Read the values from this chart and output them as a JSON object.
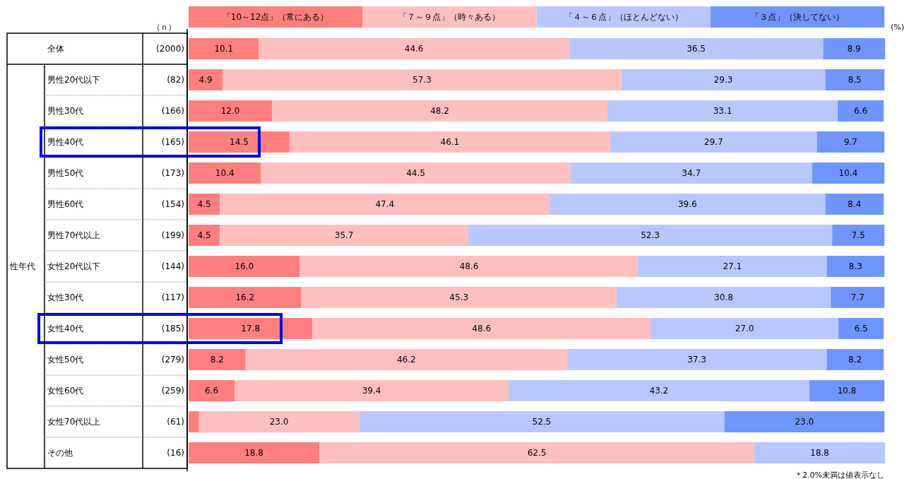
{
  "chart_data": {
    "type": "bar",
    "orientation": "horizontal",
    "stacked": true,
    "legend": "top",
    "xlim": [
      0,
      100
    ],
    "categories": [
      "全体",
      "男性20代以下",
      "男性30代",
      "男性40代",
      "男性50代",
      "男性60代",
      "男性70代以上",
      "女性20代以下",
      "女性30代",
      "女性40代",
      "女性50代",
      "女性60代",
      "女性70代以上",
      "その他"
    ],
    "series": [
      {
        "name": "「10～12点」（常にある）",
        "color": "#ff7f7f",
        "values": [
          10.1,
          4.9,
          12.0,
          14.5,
          10.4,
          4.5,
          4.5,
          16.0,
          16.2,
          17.8,
          8.2,
          6.6,
          1.5,
          18.8
        ],
        "value_labels": [
          "10.1",
          "4.9",
          "12.0",
          "14.5",
          "10.4",
          "4.5",
          "4.5",
          "16.0",
          "16.2",
          "17.8",
          "8.2",
          "6.6",
          null,
          "18.8"
        ]
      },
      {
        "name": "「７～９点」（時々ある）",
        "color": "#ffbfbf",
        "values": [
          44.6,
          57.3,
          48.2,
          46.1,
          44.5,
          47.4,
          35.7,
          48.6,
          45.3,
          48.6,
          46.2,
          39.4,
          23.0,
          62.5
        ],
        "value_labels": [
          "44.6",
          "57.3",
          "48.2",
          "46.1",
          "44.5",
          "47.4",
          "35.7",
          "48.6",
          "45.3",
          "48.6",
          "46.2",
          "39.4",
          "23.0",
          "62.5"
        ]
      },
      {
        "name": "「４～６点」（ほとんどない）",
        "color": "#b8c8ff",
        "values": [
          36.5,
          29.3,
          33.1,
          29.7,
          34.7,
          39.6,
          52.3,
          27.1,
          30.8,
          27.0,
          37.3,
          43.2,
          52.5,
          18.8
        ],
        "value_labels": [
          "36.5",
          "29.3",
          "33.1",
          "29.7",
          "34.7",
          "39.6",
          "52.3",
          "27.1",
          "30.8",
          "27.0",
          "37.3",
          "43.2",
          "52.5",
          "18.8"
        ]
      },
      {
        "name": "「３点」（決してない）",
        "color": "#6f96ff",
        "values": [
          8.9,
          8.5,
          6.6,
          9.7,
          10.4,
          8.4,
          7.5,
          8.3,
          7.7,
          6.5,
          8.2,
          10.8,
          23.0,
          null
        ],
        "value_labels": [
          "8.9",
          "8.5",
          "6.6",
          "9.7",
          "10.4",
          "8.4",
          "7.5",
          "8.3",
          "7.7",
          "6.5",
          "8.2",
          "10.8",
          "23.0",
          null
        ]
      }
    ],
    "annotations": [
      "（ｎ）",
      "(2000)",
      "(82)",
      "(166)",
      "(165)",
      "(173)",
      "(154)",
      "(199)",
      "(144)",
      "(117)",
      "(185)",
      "(279)",
      "(259)",
      "(61)",
      "(16)",
      "性年代",
      "(%)",
      "＊2.0%未満は値表示なし"
    ]
  }
}
